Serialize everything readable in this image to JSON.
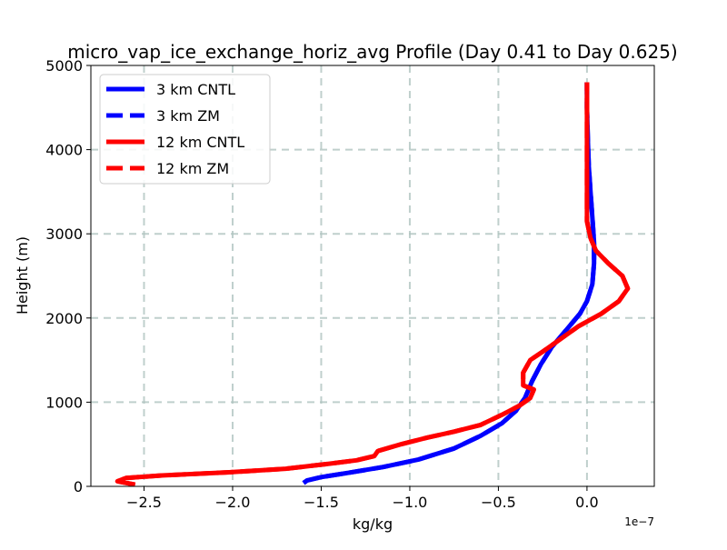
{
  "chart_data": {
    "type": "line",
    "title": "micro_vap_ice_exchange_horiz_avg Profile (Day 0.41 to Day 0.625)",
    "xlabel": "kg/kg",
    "ylabel": "Height (m)",
    "x_offset_label": "1e−7",
    "xlim": [
      -2.8,
      0.38
    ],
    "ylim": [
      0,
      5000
    ],
    "x_unit_scale": 1e-07,
    "x_ticks": [
      -2.5,
      -2.0,
      -1.5,
      -1.0,
      -0.5,
      0.0
    ],
    "x_tick_labels": [
      "−2.5",
      "−2.0",
      "−1.5",
      "−1.0",
      "−0.5",
      "0.0"
    ],
    "y_ticks": [
      0,
      1000,
      2000,
      3000,
      4000,
      5000
    ],
    "y_tick_labels": [
      "0",
      "1000",
      "2000",
      "3000",
      "4000",
      "5000"
    ],
    "grid": true,
    "legend_position": "top-left",
    "series": [
      {
        "name": "3 km CNTL",
        "color": "#0000ff",
        "style": "solid",
        "points": [
          [
            -1.6,
            40
          ],
          [
            -1.58,
            70
          ],
          [
            -1.5,
            110
          ],
          [
            -1.35,
            160
          ],
          [
            -1.15,
            230
          ],
          [
            -0.95,
            320
          ],
          [
            -0.75,
            450
          ],
          [
            -0.6,
            600
          ],
          [
            -0.48,
            750
          ],
          [
            -0.4,
            900
          ],
          [
            -0.35,
            1050
          ],
          [
            -0.31,
            1250
          ],
          [
            -0.26,
            1450
          ],
          [
            -0.2,
            1650
          ],
          [
            -0.12,
            1850
          ],
          [
            -0.04,
            2050
          ],
          [
            0.0,
            2200
          ],
          [
            0.03,
            2400
          ],
          [
            0.04,
            2650
          ],
          [
            0.04,
            2900
          ],
          [
            0.03,
            3200
          ],
          [
            0.02,
            3500
          ],
          [
            0.01,
            3800
          ],
          [
            0.005,
            4100
          ],
          [
            0.0,
            4500
          ],
          [
            0.0,
            4800
          ]
        ]
      },
      {
        "name": "3 km ZM",
        "color": "#0000ff",
        "style": "dashed",
        "points": [
          [
            -1.6,
            40
          ],
          [
            -1.58,
            70
          ],
          [
            -1.5,
            110
          ],
          [
            -1.35,
            160
          ],
          [
            -1.15,
            230
          ],
          [
            -0.95,
            320
          ],
          [
            -0.75,
            450
          ],
          [
            -0.6,
            600
          ],
          [
            -0.48,
            750
          ],
          [
            -0.4,
            900
          ],
          [
            -0.35,
            1050
          ],
          [
            -0.31,
            1250
          ],
          [
            -0.26,
            1450
          ],
          [
            -0.2,
            1650
          ],
          [
            -0.12,
            1850
          ],
          [
            -0.04,
            2050
          ],
          [
            0.0,
            2200
          ],
          [
            0.03,
            2400
          ],
          [
            0.04,
            2650
          ],
          [
            0.04,
            2900
          ],
          [
            0.03,
            3200
          ],
          [
            0.02,
            3500
          ],
          [
            0.01,
            3800
          ],
          [
            0.005,
            4100
          ],
          [
            0.0,
            4500
          ],
          [
            0.0,
            4800
          ]
        ]
      },
      {
        "name": "12 km CNTL",
        "color": "#ff0000",
        "style": "solid",
        "points": [
          [
            -2.55,
            20
          ],
          [
            -2.65,
            60
          ],
          [
            -2.6,
            100
          ],
          [
            -2.4,
            130
          ],
          [
            -2.0,
            170
          ],
          [
            -1.7,
            210
          ],
          [
            -1.45,
            270
          ],
          [
            -1.3,
            310
          ],
          [
            -1.2,
            360
          ],
          [
            -1.18,
            420
          ],
          [
            -1.05,
            500
          ],
          [
            -0.9,
            580
          ],
          [
            -0.75,
            650
          ],
          [
            -0.6,
            730
          ],
          [
            -0.48,
            850
          ],
          [
            -0.38,
            960
          ],
          [
            -0.32,
            1050
          ],
          [
            -0.3,
            1150
          ],
          [
            -0.36,
            1200
          ],
          [
            -0.36,
            1350
          ],
          [
            -0.32,
            1500
          ],
          [
            -0.25,
            1600
          ],
          [
            -0.15,
            1750
          ],
          [
            -0.05,
            1900
          ],
          [
            0.08,
            2050
          ],
          [
            0.18,
            2200
          ],
          [
            0.23,
            2350
          ],
          [
            0.2,
            2500
          ],
          [
            0.12,
            2650
          ],
          [
            0.05,
            2800
          ],
          [
            0.02,
            2950
          ],
          [
            0.0,
            3150
          ],
          [
            0.0,
            3500
          ],
          [
            0.0,
            4000
          ],
          [
            0.0,
            4500
          ],
          [
            0.0,
            4800
          ]
        ]
      },
      {
        "name": "12 km ZM",
        "color": "#ff0000",
        "style": "dashed",
        "points": [
          [
            -2.55,
            20
          ],
          [
            -2.65,
            60
          ],
          [
            -2.6,
            100
          ],
          [
            -2.4,
            130
          ],
          [
            -2.0,
            170
          ],
          [
            -1.7,
            210
          ],
          [
            -1.45,
            270
          ],
          [
            -1.3,
            310
          ],
          [
            -1.2,
            360
          ],
          [
            -1.18,
            420
          ],
          [
            -1.05,
            500
          ],
          [
            -0.9,
            580
          ],
          [
            -0.75,
            650
          ],
          [
            -0.6,
            730
          ],
          [
            -0.48,
            850
          ],
          [
            -0.38,
            960
          ],
          [
            -0.32,
            1050
          ],
          [
            -0.3,
            1150
          ],
          [
            -0.36,
            1200
          ],
          [
            -0.36,
            1350
          ],
          [
            -0.32,
            1500
          ],
          [
            -0.25,
            1600
          ],
          [
            -0.15,
            1750
          ],
          [
            -0.05,
            1900
          ],
          [
            0.08,
            2050
          ],
          [
            0.18,
            2200
          ],
          [
            0.23,
            2350
          ],
          [
            0.2,
            2500
          ],
          [
            0.12,
            2650
          ],
          [
            0.05,
            2800
          ],
          [
            0.02,
            2950
          ],
          [
            0.0,
            3150
          ],
          [
            0.0,
            3500
          ],
          [
            0.0,
            4000
          ],
          [
            0.0,
            4500
          ],
          [
            0.0,
            4800
          ]
        ]
      }
    ]
  }
}
